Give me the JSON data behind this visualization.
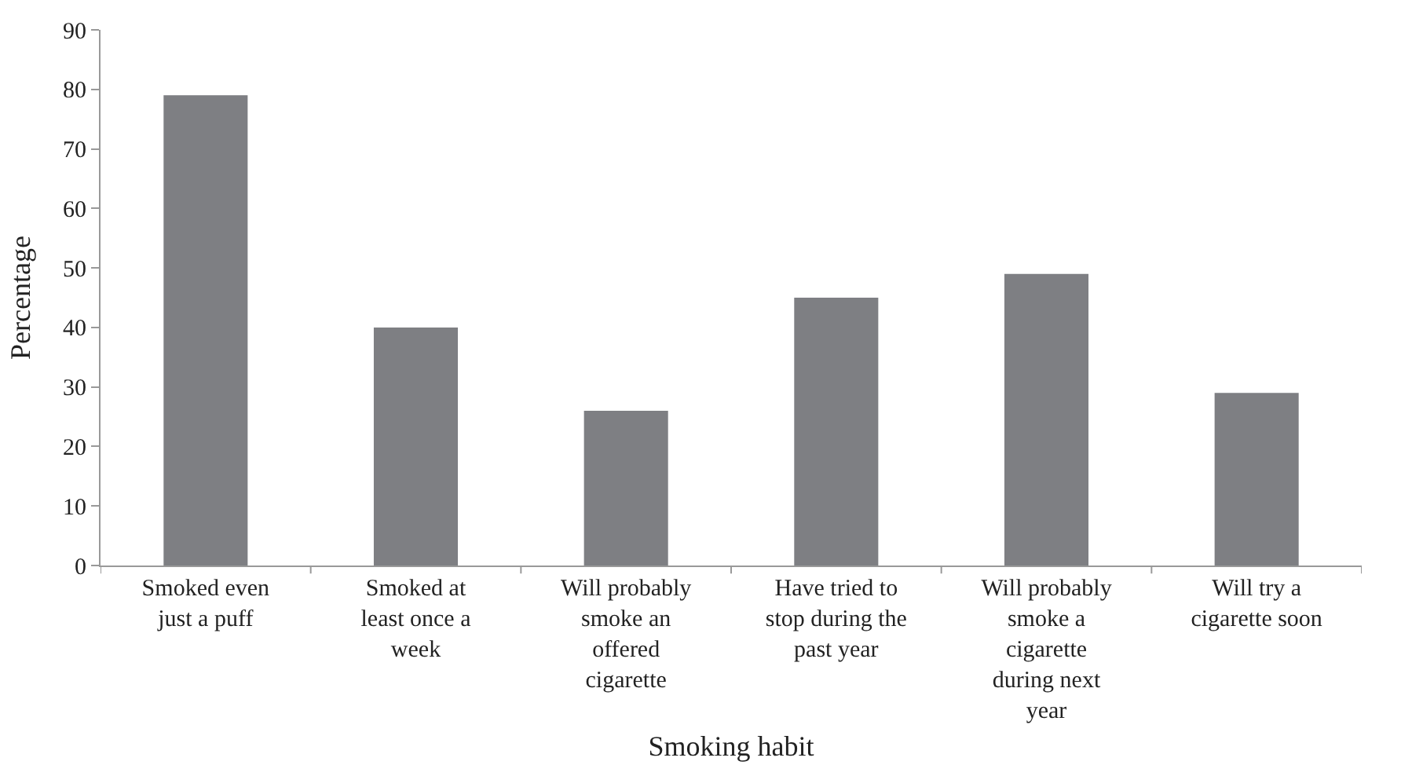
{
  "chart_data": {
    "type": "bar",
    "xlabel": "Smoking habit",
    "ylabel": "Percentage",
    "categories": [
      "Smoked even\njust a puff",
      "Smoked at\nleast once a\nweek",
      "Will probably\nsmoke an\noffered\ncigarette",
      "Have tried to\nstop during the\npast year",
      "Will probably\nsmoke a\ncigarette\nduring next\nyear",
      "Will try a\ncigarette soon"
    ],
    "values": [
      79,
      40,
      26,
      45,
      49,
      29
    ],
    "color": "#7e7f83",
    "ylim": [
      0,
      90
    ],
    "yticks": [
      0,
      10,
      20,
      30,
      40,
      50,
      60,
      70,
      80,
      90
    ]
  }
}
